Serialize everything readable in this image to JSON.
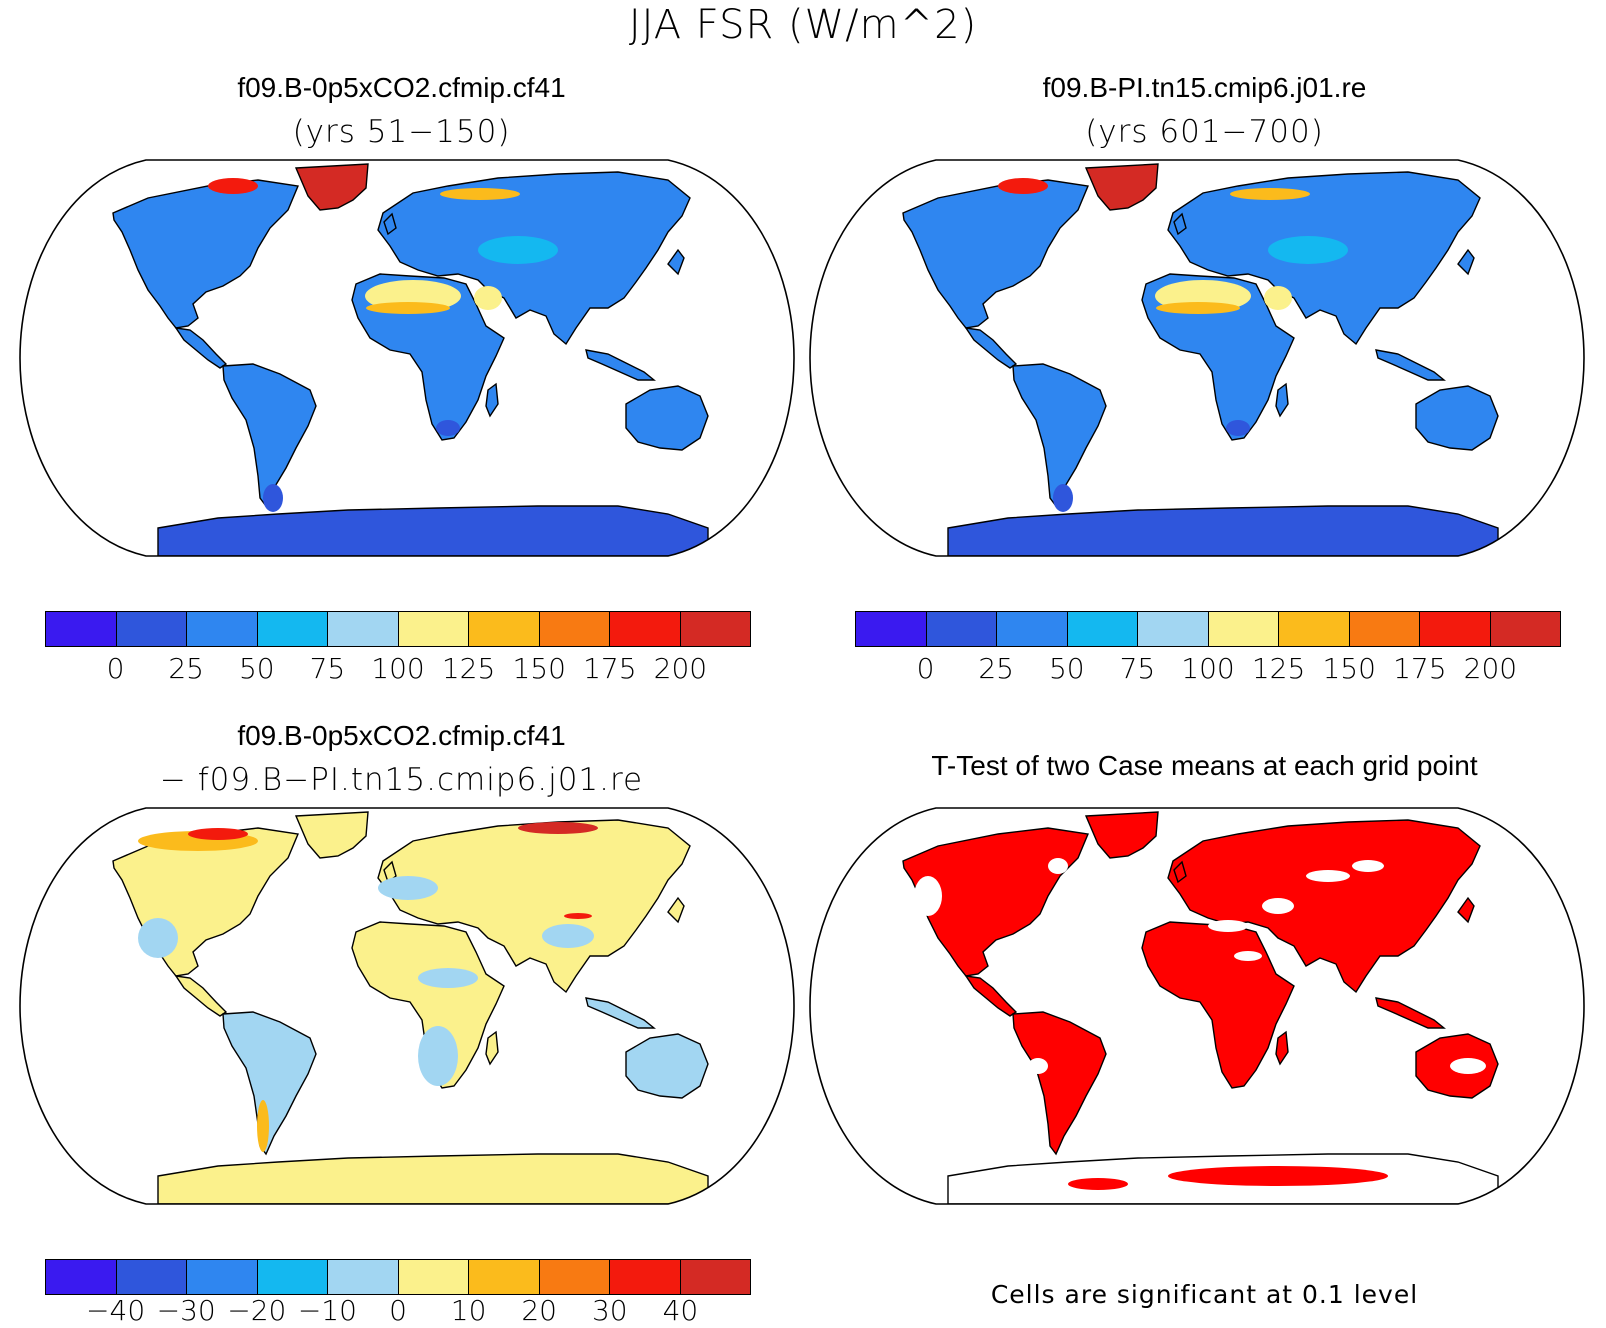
{
  "figure_title": "JJA FSR (W/m^2)",
  "panels": {
    "top_left": {
      "title": "f09.B-0p5xCO2.cfmip.cf41",
      "subtitle": "(yrs 51−150)"
    },
    "top_right": {
      "title": "f09.B-PI.tn15.cmip6.j01.re",
      "subtitle": "(yrs 601−700)"
    },
    "bottom_left": {
      "title": "f09.B-0p5xCO2.cfmip.cf41",
      "subtitle": "− f09.B−PI.tn15.cmip6.j01.re"
    },
    "bottom_right": {
      "title": "T-Test of two Case means at each grid point",
      "footnote": "Cells are significant at 0.1 level"
    }
  },
  "colorbars": {
    "colors": [
      "#3a1af0",
      "#2f56dc",
      "#2f86f0",
      "#14b8f0",
      "#a2d6f2",
      "#fbf18c",
      "#fbbb1c",
      "#f87a12",
      "#f31a0d",
      "#d42a24"
    ],
    "absolute_ticks": [
      "0",
      "25",
      "50",
      "75",
      "100",
      "125",
      "150",
      "175",
      "200"
    ],
    "difference_ticks": [
      "−40",
      "−30",
      "−20",
      "−10",
      "0",
      "10",
      "20",
      "30",
      "40"
    ]
  },
  "map_colors": {
    "land_mean": "#2f86f0",
    "land_low": "#2f56dc",
    "land_desert": "#fbf18c",
    "land_high": "#f31a0d",
    "greenland": "#d42a24",
    "diff_pos": "#fbf18c",
    "diff_neg": "#a2d6f2",
    "significant": "#ff0000"
  }
}
